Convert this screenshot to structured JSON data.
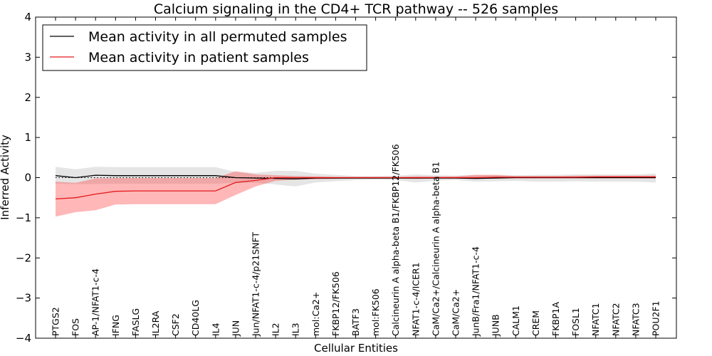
{
  "chart_data": {
    "type": "line",
    "title": "Calcium signaling in the CD4+ TCR pathway -- 526 samples",
    "xlabel": "Cellular Entities",
    "ylabel": "Inferred Activity",
    "ylim": [
      -4,
      4
    ],
    "yticks": [
      4,
      3,
      2,
      1,
      0,
      -1,
      -2,
      -3,
      -4
    ],
    "ytick_labels": [
      "4",
      "3",
      "2",
      "1",
      "0",
      "−1",
      "−2",
      "−3",
      "−4"
    ],
    "legend_position": "top-left",
    "categories": [
      "PTGS2",
      "FOS",
      "AP-1/NFAT1-c-4",
      "IFNG",
      "FASLG",
      "IL2RA",
      "CSF2",
      "CD40LG",
      "IL4",
      "JUN",
      "Jun/NFAT1-c-4/p21SNFT",
      "IL2",
      "IL3",
      "mol:Ca2+",
      "FKBP12/FK506",
      "BATF3",
      "mol:FK506",
      "Calcineurin A alpha-beta B1/FKBP12/FK506",
      "NFAT1-c-4/ICER1",
      "CaM/Ca2+/Calcineurin A alpha-beta B1",
      "CaM/Ca2+",
      "JunB/Fra1/NFAT1-c-4",
      "JUNB",
      "CALM1",
      "CREM",
      "FKBP1A",
      "FOSL1",
      "NFATC1",
      "NFATC2",
      "NFATC3",
      "POU2F1"
    ],
    "series": [
      {
        "name": "Mean activity in all permuted samples",
        "color": "#000000",
        "values": [
          0.05,
          0.0,
          0.06,
          0.05,
          0.05,
          0.05,
          0.05,
          0.05,
          0.05,
          0.0,
          -0.01,
          -0.02,
          -0.03,
          -0.01,
          -0.01,
          -0.01,
          -0.01,
          -0.01,
          -0.01,
          -0.01,
          -0.01,
          -0.02,
          -0.01,
          0.0,
          0.0,
          0.0,
          0.0,
          0.0,
          0.0,
          0.0,
          0.0
        ],
        "lower": [
          -0.15,
          -0.16,
          -0.16,
          -0.15,
          -0.15,
          -0.15,
          -0.15,
          -0.15,
          -0.15,
          -0.13,
          -0.13,
          -0.17,
          -0.22,
          -0.12,
          -0.09,
          -0.06,
          -0.05,
          -0.06,
          -0.12,
          -0.08,
          -0.06,
          -0.1,
          -0.09,
          -0.08,
          -0.1,
          -0.1,
          -0.09,
          -0.1,
          -0.1,
          -0.1,
          -0.12
        ],
        "upper": [
          0.27,
          0.21,
          0.27,
          0.26,
          0.26,
          0.26,
          0.26,
          0.26,
          0.26,
          0.14,
          0.12,
          0.17,
          0.17,
          0.1,
          0.07,
          0.04,
          0.04,
          0.05,
          0.08,
          0.06,
          0.05,
          0.07,
          0.07,
          0.06,
          0.07,
          0.07,
          0.08,
          0.08,
          0.08,
          0.08,
          0.1
        ]
      },
      {
        "name": "Mean activity in patient samples",
        "color": "#e41a1c",
        "values": [
          -0.53,
          -0.5,
          -0.41,
          -0.34,
          -0.33,
          -0.33,
          -0.33,
          -0.33,
          -0.33,
          -0.12,
          -0.07,
          0.0,
          0.0,
          0.0,
          0.0,
          0.0,
          0.0,
          0.0,
          0.0,
          0.0,
          0.0,
          0.0,
          0.01,
          0.01,
          0.01,
          0.01,
          0.01,
          0.02,
          0.02,
          0.02,
          0.02
        ],
        "lower": [
          -0.97,
          -0.86,
          -0.81,
          -0.67,
          -0.66,
          -0.66,
          -0.66,
          -0.66,
          -0.66,
          -0.43,
          -0.22,
          -0.08,
          -0.05,
          -0.04,
          -0.03,
          -0.02,
          -0.02,
          -0.02,
          -0.03,
          -0.02,
          -0.02,
          -0.03,
          -0.02,
          -0.02,
          -0.02,
          -0.02,
          -0.02,
          -0.02,
          -0.02,
          -0.02,
          -0.02
        ],
        "upper": [
          -0.1,
          -0.13,
          -0.02,
          -0.01,
          -0.01,
          -0.01,
          -0.01,
          -0.01,
          -0.01,
          0.16,
          0.08,
          0.06,
          0.04,
          0.03,
          0.02,
          0.02,
          0.02,
          0.02,
          0.03,
          0.03,
          0.03,
          0.07,
          0.07,
          0.04,
          0.04,
          0.04,
          0.05,
          0.05,
          0.05,
          0.05,
          0.05
        ]
      }
    ]
  }
}
